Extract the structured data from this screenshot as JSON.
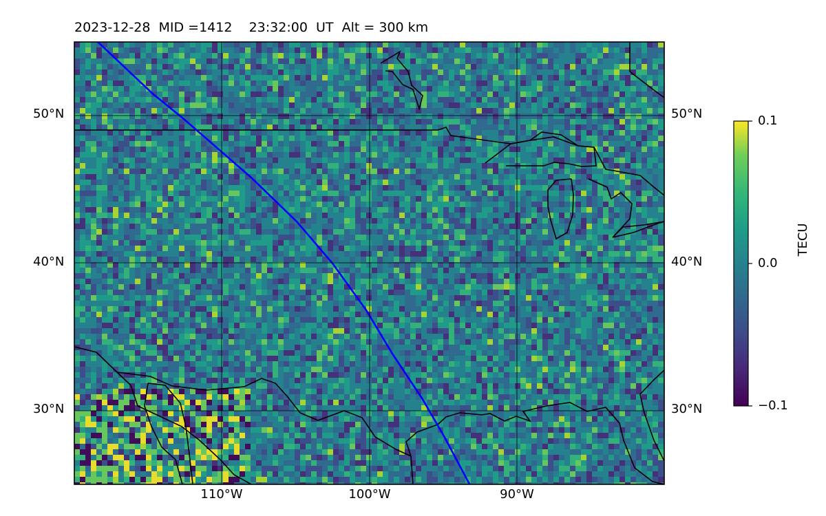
{
  "title": "2023-12-28  MID =1412    23:32:00  UT  Alt = 300 km",
  "map": {
    "projection": "equirectangular",
    "lon_range": [
      -120,
      -80
    ],
    "lat_range": [
      25,
      55
    ],
    "lat_ticks": [
      {
        "value": 30,
        "label": "30°N"
      },
      {
        "value": 40,
        "label": "40°N"
      },
      {
        "value": 50,
        "label": "50°N"
      }
    ],
    "lon_ticks": [
      {
        "value": -110,
        "label": "110°W"
      },
      {
        "value": -100,
        "label": "100°W"
      },
      {
        "value": -90,
        "label": "90°W"
      }
    ],
    "grid": true,
    "grid_lon": [
      -110,
      -100,
      -90
    ],
    "grid_lat": [
      30,
      40,
      50
    ],
    "colors": {
      "coastline": "#000000",
      "track": "#0000ff",
      "grid": "#000000"
    }
  },
  "satellite_track": [
    [
      -118.4,
      55.0
    ],
    [
      -116.5,
      53.2
    ],
    [
      -114.7,
      51.5
    ],
    [
      -112.6,
      49.8
    ],
    [
      -110.3,
      47.8
    ],
    [
      -108.0,
      45.8
    ],
    [
      -104.9,
      42.8
    ],
    [
      -102.5,
      40.0
    ],
    [
      -100.2,
      36.8
    ],
    [
      -98.4,
      33.8
    ],
    [
      -96.4,
      30.8
    ],
    [
      -94.9,
      28.2
    ],
    [
      -93.2,
      25.0
    ]
  ],
  "colorbar": {
    "label": "TECU",
    "colormap": "viridis",
    "vmin": -0.1,
    "vmax": 0.1,
    "ticks": [
      {
        "value": 0.1,
        "label": "0.1"
      },
      {
        "value": 0.0,
        "label": "0.0"
      },
      {
        "value": -0.1,
        "label": "−0.1"
      }
    ]
  }
}
